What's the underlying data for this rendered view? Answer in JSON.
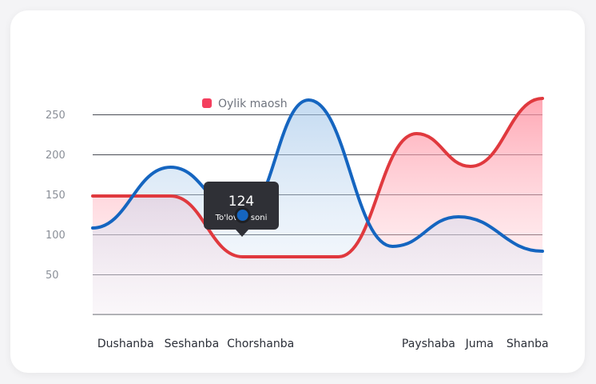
{
  "chart_data": {
    "type": "area",
    "categories": [
      "Dushanba",
      "Seshanba",
      "Chorshanba",
      "",
      "Payshaba",
      "Juma",
      "Shanba"
    ],
    "y_ticks": [
      50,
      100,
      150,
      200,
      250
    ],
    "ylim": [
      0,
      300
    ],
    "grid": true,
    "legend": {
      "placement": "top-left",
      "label": "Oylik maosh",
      "color": "#f43f5e"
    },
    "series": [
      {
        "name": "Oylik maosh",
        "color": "#e0393e",
        "fill": "#ffc9d2",
        "points": [
          [
            0,
            148
          ],
          [
            1.3,
            148
          ],
          [
            2.5,
            72
          ],
          [
            4.1,
            72
          ],
          [
            5.4,
            226
          ],
          [
            6.3,
            185
          ],
          [
            7.5,
            270
          ]
        ]
      },
      {
        "name": "To'lovlar soni",
        "color": "#1565c0",
        "fill": "#bcd5ee",
        "points": [
          [
            0,
            108
          ],
          [
            1.3,
            184
          ],
          [
            2.5,
            124
          ],
          [
            3.6,
            268
          ],
          [
            5.0,
            85
          ],
          [
            6.1,
            122
          ],
          [
            7.5,
            79
          ]
        ]
      }
    ],
    "tooltip": {
      "value": "124",
      "label": "To'lovlar soni",
      "series": 1,
      "point_index": 2
    }
  }
}
